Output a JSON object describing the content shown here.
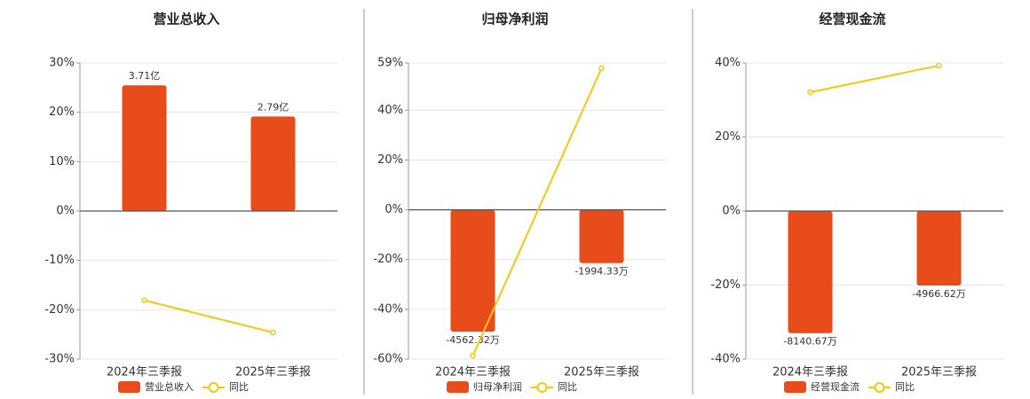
{
  "chart_data": [
    {
      "type": "bar_line",
      "title": "营业总收入",
      "categories": [
        "2024年三季报",
        "2025年三季报"
      ],
      "series": [
        {
          "name": "营业总收入",
          "type": "bar",
          "axis": "y2",
          "color": "#e84c1b",
          "values": [
            3.71,
            2.79
          ],
          "value_labels": [
            "3.71亿",
            "2.79亿"
          ]
        },
        {
          "name": "同比",
          "type": "line",
          "color": "#f2c811",
          "values": [
            -18.1,
            -24.6
          ]
        }
      ],
      "ylim": [
        -30,
        30
      ],
      "yticks": [
        {
          "value": -30,
          "label": "-30%"
        },
        {
          "value": -20,
          "label": "-20%"
        },
        {
          "value": -10,
          "label": "-10%"
        },
        {
          "value": 0,
          "label": "0%"
        },
        {
          "value": 10,
          "label": "10%"
        },
        {
          "value": 20,
          "label": "20%"
        },
        {
          "value": 30,
          "label": "30%"
        }
      ],
      "y2lim": [
        -4.37,
        4.37
      ],
      "grid": true
    },
    {
      "type": "bar_line",
      "title": "归母净利润",
      "categories": [
        "2024年三季报",
        "2025年三季报"
      ],
      "series": [
        {
          "name": "归母净利润",
          "type": "bar",
          "axis": "y2",
          "color": "#e84c1b",
          "values": [
            -4562.32,
            -1994.33
          ],
          "value_labels": [
            "-4562.32万",
            "-1994.33万"
          ]
        },
        {
          "name": "同比",
          "type": "line",
          "color": "#f2c811",
          "values": [
            -58.6,
            56.9
          ]
        }
      ],
      "ylim": [
        -60,
        59
      ],
      "yticks": [
        {
          "value": -60,
          "label": "-60%"
        },
        {
          "value": -40,
          "label": "-40%"
        },
        {
          "value": -20,
          "label": "-20%"
        },
        {
          "value": 0,
          "label": "0%"
        },
        {
          "value": 20,
          "label": "20%"
        },
        {
          "value": 40,
          "label": "40%"
        },
        {
          "value": 59,
          "label": "59%"
        }
      ],
      "y2lim": [
        -5586,
        5493
      ],
      "grid": true
    },
    {
      "type": "bar_line",
      "title": "经营现金流",
      "categories": [
        "2024年三季报",
        "2025年三季报"
      ],
      "series": [
        {
          "name": "经营现金流",
          "type": "bar",
          "axis": "y2",
          "color": "#e84c1b",
          "values": [
            -8140.67,
            -4966.62
          ],
          "value_labels": [
            "-8140.67万",
            "-4966.62万"
          ]
        },
        {
          "name": "同比",
          "type": "line",
          "color": "#f2c811",
          "values": [
            32.1,
            39.3
          ]
        }
      ],
      "ylim": [
        -40,
        40
      ],
      "yticks": [
        {
          "value": -40,
          "label": "-40%"
        },
        {
          "value": -20,
          "label": "-20%"
        },
        {
          "value": 0,
          "label": "0%"
        },
        {
          "value": 20,
          "label": "20%"
        },
        {
          "value": 40,
          "label": "40%"
        }
      ],
      "y2lim": [
        -9870,
        9870
      ],
      "grid": true
    }
  ]
}
